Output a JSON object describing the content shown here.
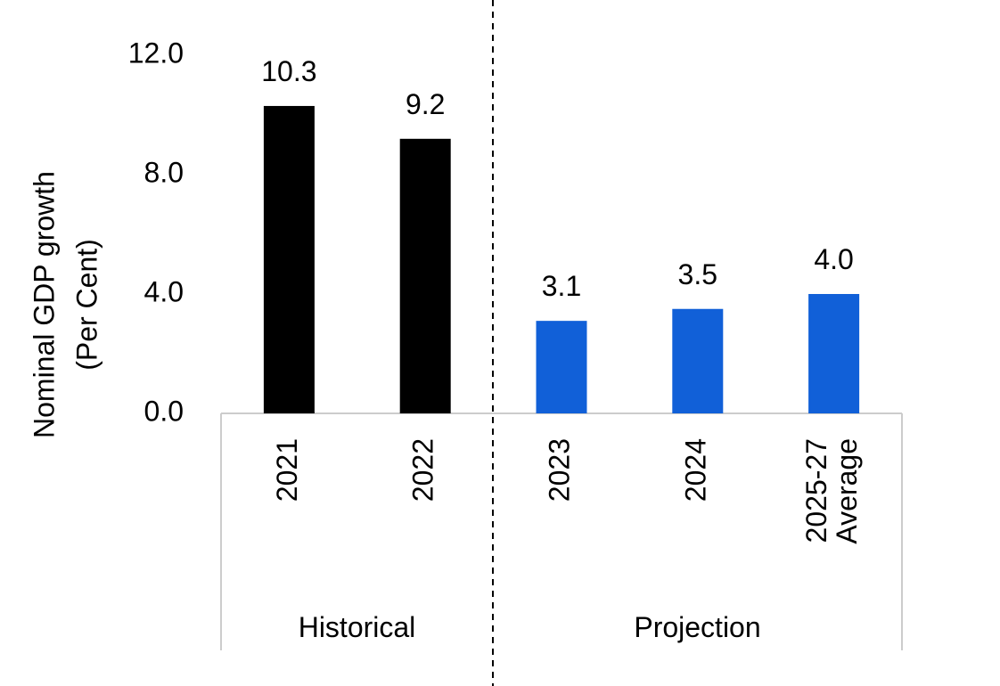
{
  "chart_data": {
    "type": "bar",
    "title": "",
    "xlabel": "",
    "ylabel_lines": [
      "Nominal GDP growth",
      "(Per Cent)"
    ],
    "ylim": [
      0,
      12
    ],
    "yticks": [
      "0.0",
      "4.0",
      "8.0",
      "12.0"
    ],
    "categories": [
      {
        "lines": [
          "2021"
        ]
      },
      {
        "lines": [
          "2022"
        ]
      },
      {
        "lines": [
          "2023"
        ]
      },
      {
        "lines": [
          "2024"
        ]
      },
      {
        "lines": [
          "2025-27",
          "Average"
        ]
      }
    ],
    "values": [
      10.3,
      9.2,
      3.1,
      3.5,
      4.0
    ],
    "value_labels": [
      "10.3",
      "9.2",
      "3.1",
      "3.5",
      "4.0"
    ],
    "bar_colors": [
      "#000000",
      "#000000",
      "#1160d8",
      "#1160d8",
      "#1160d8"
    ],
    "groups": [
      {
        "label": "Historical",
        "categories": [
          0,
          1
        ]
      },
      {
        "label": "Projection",
        "categories": [
          2,
          3,
          4
        ]
      }
    ],
    "grid": false,
    "divider": "dashed line between Historical and Projection"
  }
}
